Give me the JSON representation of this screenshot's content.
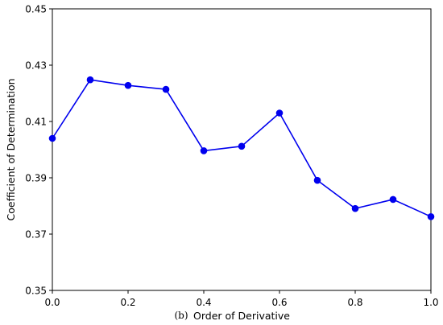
{
  "chart_data": {
    "type": "line",
    "xlabel": "Order of Derivative",
    "ylabel": "Coefficient of Determination",
    "panel_label": "(b)",
    "xlim": [
      0.0,
      1.0
    ],
    "ylim": [
      0.35,
      0.45
    ],
    "x_ticks": [
      "0.0",
      "0.2",
      "0.4",
      "0.6",
      "0.8",
      "1.0"
    ],
    "y_ticks": [
      "0.35",
      "0.37",
      "0.39",
      "0.41",
      "0.43",
      "0.45"
    ],
    "grid": false,
    "series": [
      {
        "color": "#0000ee",
        "marker": "circle",
        "x": [
          0.0,
          0.1,
          0.2,
          0.3,
          0.4,
          0.5,
          0.6,
          0.7,
          0.8,
          0.9,
          1.0
        ],
        "y": [
          0.404,
          0.4248,
          0.4228,
          0.4214,
          0.3996,
          0.4012,
          0.413,
          0.3891,
          0.3791,
          0.3823,
          0.3762
        ]
      }
    ]
  }
}
